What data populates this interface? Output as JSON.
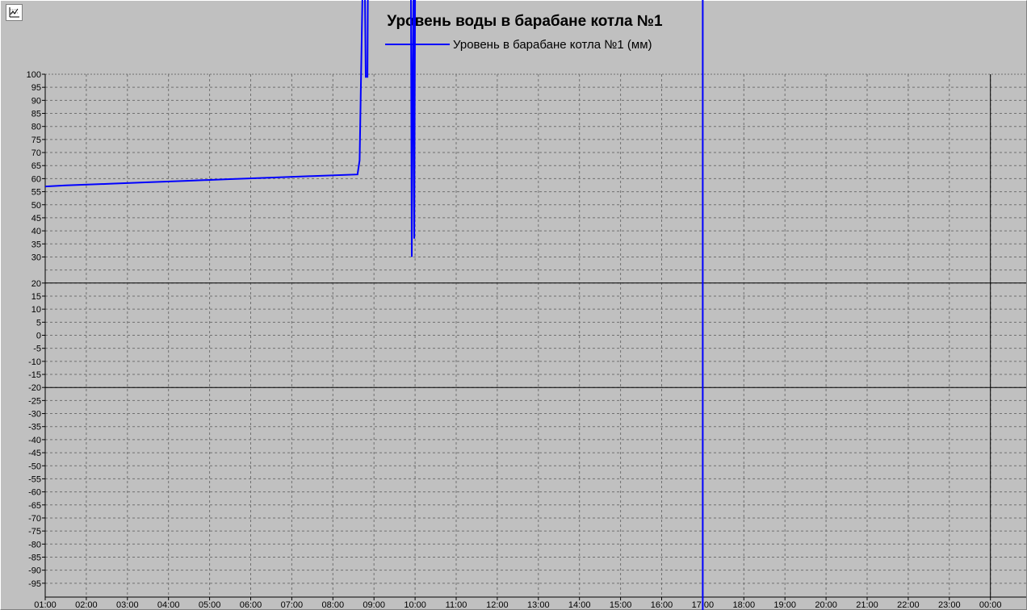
{
  "chart_data": {
    "type": "line",
    "title": "Уровень воды в барабане котла №1",
    "xlabel": "",
    "ylabel": "",
    "ylim": [
      -100,
      100
    ],
    "y_ticks": [
      100,
      95,
      90,
      85,
      80,
      75,
      70,
      65,
      60,
      55,
      50,
      45,
      40,
      35,
      30,
      20,
      15,
      10,
      5,
      0,
      -5,
      -10,
      -15,
      -20,
      -25,
      -30,
      -35,
      -40,
      -45,
      -50,
      -55,
      -60,
      -65,
      -70,
      -75,
      -80,
      -85,
      -90,
      -95
    ],
    "y_tick_labels": [
      "100",
      "95",
      "90",
      "85",
      "80",
      "75",
      "70",
      "65",
      "60",
      "55",
      "50",
      "45",
      "40",
      "35",
      "30",
      "20",
      "15",
      "10",
      "5",
      "0",
      "-5",
      "-10",
      "-15",
      "-20",
      "-25",
      "-30",
      "-35",
      "-40",
      "-45",
      "-50",
      "-55",
      "-60",
      "-65",
      "-70",
      "-75",
      "-80",
      "-85",
      "-90",
      "-95"
    ],
    "x_ticks": [
      "01:00",
      "02:00",
      "03:00",
      "04:00",
      "05:00",
      "06:00",
      "07:00",
      "08:00",
      "09:00",
      "10:00",
      "11:00",
      "12:00",
      "13:00",
      "14:00",
      "15:00",
      "16:00",
      "17:00",
      "18:00",
      "19:00",
      "20:00",
      "21:00",
      "22:00",
      "23:00",
      "00:00"
    ],
    "xlim_hours": [
      1.0,
      24.5
    ],
    "grid": true,
    "legend_position": "top-center",
    "limit_lines": [
      20,
      -20
    ],
    "cursor_hour": 17.0,
    "current_time_hour": 24.0,
    "series": [
      {
        "name": "Уровень в барабане котла №1 (мм)",
        "color": "#0000ff",
        "points": [
          [
            1.0,
            57
          ],
          [
            1.5,
            57.4
          ],
          [
            2.5,
            58
          ],
          [
            3.5,
            58.6
          ],
          [
            4.5,
            59.2
          ],
          [
            5.5,
            59.8
          ],
          [
            6.5,
            60.4
          ],
          [
            7.5,
            61
          ],
          [
            8.6,
            61.6
          ],
          [
            8.65,
            67
          ],
          [
            8.72,
            130
          ],
          [
            8.78,
            130
          ],
          [
            8.8,
            99
          ],
          [
            8.84,
            99
          ],
          [
            8.85,
            130
          ],
          [
            9.9,
            130
          ],
          [
            9.92,
            30
          ],
          [
            9.94,
            95
          ],
          [
            9.96,
            130
          ],
          [
            9.98,
            37
          ],
          [
            10.0,
            130
          ]
        ]
      }
    ]
  }
}
